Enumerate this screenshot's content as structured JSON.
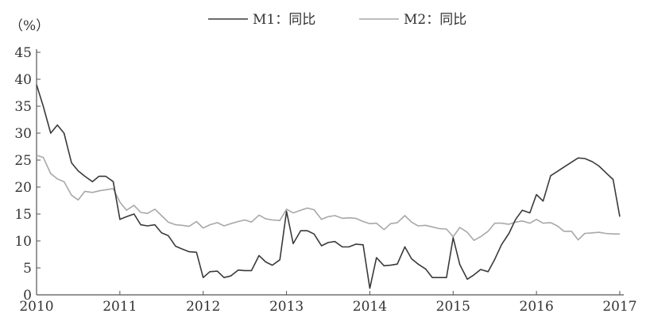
{
  "chart_data": {
    "type": "line",
    "ylabel": "（%）",
    "ylim": [
      0,
      45
    ],
    "yticks": [
      0,
      5,
      10,
      15,
      20,
      25,
      30,
      35,
      40,
      45
    ],
    "xlim": [
      2010,
      2017
    ],
    "xticks": [
      "2010",
      "2011",
      "2012",
      "2013",
      "2014",
      "2015",
      "2016",
      "2017"
    ],
    "grid": false,
    "legend_position": "top-center",
    "series": [
      {
        "name": "M1：同比",
        "color": "#3a3a3a",
        "points": [
          [
            2010.0,
            39.0
          ],
          [
            2010.08,
            35.0
          ],
          [
            2010.17,
            30.0
          ],
          [
            2010.25,
            31.5
          ],
          [
            2010.33,
            30.0
          ],
          [
            2010.42,
            24.5
          ],
          [
            2010.5,
            23.0
          ],
          [
            2010.58,
            22.0
          ],
          [
            2010.67,
            21.0
          ],
          [
            2010.75,
            22.0
          ],
          [
            2010.83,
            22.0
          ],
          [
            2010.92,
            21.0
          ],
          [
            2011.0,
            14.0
          ],
          [
            2011.08,
            14.5
          ],
          [
            2011.17,
            15.0
          ],
          [
            2011.25,
            13.0
          ],
          [
            2011.33,
            12.8
          ],
          [
            2011.42,
            13.0
          ],
          [
            2011.5,
            11.5
          ],
          [
            2011.58,
            11.0
          ],
          [
            2011.67,
            9.0
          ],
          [
            2011.75,
            8.5
          ],
          [
            2011.83,
            8.0
          ],
          [
            2011.92,
            7.9
          ],
          [
            2012.0,
            3.2
          ],
          [
            2012.08,
            4.3
          ],
          [
            2012.17,
            4.4
          ],
          [
            2012.25,
            3.2
          ],
          [
            2012.33,
            3.5
          ],
          [
            2012.42,
            4.6
          ],
          [
            2012.5,
            4.5
          ],
          [
            2012.58,
            4.5
          ],
          [
            2012.67,
            7.3
          ],
          [
            2012.75,
            6.1
          ],
          [
            2012.83,
            5.5
          ],
          [
            2012.92,
            6.5
          ],
          [
            2013.0,
            15.5
          ],
          [
            2013.08,
            9.5
          ],
          [
            2013.17,
            11.9
          ],
          [
            2013.25,
            11.9
          ],
          [
            2013.33,
            11.3
          ],
          [
            2013.42,
            9.1
          ],
          [
            2013.5,
            9.7
          ],
          [
            2013.58,
            9.9
          ],
          [
            2013.67,
            8.9
          ],
          [
            2013.75,
            8.9
          ],
          [
            2013.83,
            9.4
          ],
          [
            2013.92,
            9.3
          ],
          [
            2014.0,
            1.2
          ],
          [
            2014.08,
            6.9
          ],
          [
            2014.17,
            5.4
          ],
          [
            2014.25,
            5.5
          ],
          [
            2014.33,
            5.7
          ],
          [
            2014.42,
            8.9
          ],
          [
            2014.5,
            6.7
          ],
          [
            2014.58,
            5.7
          ],
          [
            2014.67,
            4.8
          ],
          [
            2014.75,
            3.2
          ],
          [
            2014.83,
            3.2
          ],
          [
            2014.92,
            3.2
          ],
          [
            2015.0,
            10.6
          ],
          [
            2015.08,
            5.6
          ],
          [
            2015.17,
            2.9
          ],
          [
            2015.25,
            3.7
          ],
          [
            2015.33,
            4.7
          ],
          [
            2015.42,
            4.3
          ],
          [
            2015.5,
            6.6
          ],
          [
            2015.58,
            9.3
          ],
          [
            2015.67,
            11.4
          ],
          [
            2015.75,
            14.0
          ],
          [
            2015.83,
            15.7
          ],
          [
            2015.92,
            15.2
          ],
          [
            2016.0,
            18.6
          ],
          [
            2016.08,
            17.4
          ],
          [
            2016.17,
            22.1
          ],
          [
            2016.25,
            22.9
          ],
          [
            2016.33,
            23.7
          ],
          [
            2016.42,
            24.6
          ],
          [
            2016.5,
            25.4
          ],
          [
            2016.58,
            25.3
          ],
          [
            2016.67,
            24.7
          ],
          [
            2016.75,
            23.9
          ],
          [
            2016.83,
            22.7
          ],
          [
            2016.92,
            21.4
          ],
          [
            2017.0,
            14.5
          ]
        ]
      },
      {
        "name": "M2：同比",
        "color": "#a8a8a8",
        "points": [
          [
            2010.0,
            25.9
          ],
          [
            2010.08,
            25.5
          ],
          [
            2010.17,
            22.5
          ],
          [
            2010.25,
            21.5
          ],
          [
            2010.33,
            21.0
          ],
          [
            2010.42,
            18.5
          ],
          [
            2010.5,
            17.6
          ],
          [
            2010.58,
            19.2
          ],
          [
            2010.67,
            19.0
          ],
          [
            2010.75,
            19.3
          ],
          [
            2010.83,
            19.5
          ],
          [
            2010.92,
            19.7
          ],
          [
            2011.0,
            17.2
          ],
          [
            2011.08,
            15.7
          ],
          [
            2011.17,
            16.6
          ],
          [
            2011.25,
            15.3
          ],
          [
            2011.33,
            15.1
          ],
          [
            2011.42,
            15.9
          ],
          [
            2011.5,
            14.7
          ],
          [
            2011.58,
            13.5
          ],
          [
            2011.67,
            13.0
          ],
          [
            2011.75,
            12.9
          ],
          [
            2011.83,
            12.7
          ],
          [
            2011.92,
            13.6
          ],
          [
            2012.0,
            12.4
          ],
          [
            2012.08,
            13.0
          ],
          [
            2012.17,
            13.4
          ],
          [
            2012.25,
            12.8
          ],
          [
            2012.33,
            13.2
          ],
          [
            2012.42,
            13.6
          ],
          [
            2012.5,
            13.9
          ],
          [
            2012.58,
            13.5
          ],
          [
            2012.67,
            14.8
          ],
          [
            2012.75,
            14.1
          ],
          [
            2012.83,
            13.9
          ],
          [
            2012.92,
            13.8
          ],
          [
            2013.0,
            15.9
          ],
          [
            2013.08,
            15.2
          ],
          [
            2013.17,
            15.7
          ],
          [
            2013.25,
            16.1
          ],
          [
            2013.33,
            15.8
          ],
          [
            2013.42,
            14.0
          ],
          [
            2013.5,
            14.5
          ],
          [
            2013.58,
            14.7
          ],
          [
            2013.67,
            14.2
          ],
          [
            2013.75,
            14.3
          ],
          [
            2013.83,
            14.2
          ],
          [
            2013.92,
            13.6
          ],
          [
            2014.0,
            13.2
          ],
          [
            2014.08,
            13.3
          ],
          [
            2014.17,
            12.1
          ],
          [
            2014.25,
            13.2
          ],
          [
            2014.33,
            13.4
          ],
          [
            2014.42,
            14.7
          ],
          [
            2014.5,
            13.5
          ],
          [
            2014.58,
            12.8
          ],
          [
            2014.67,
            12.9
          ],
          [
            2014.75,
            12.6
          ],
          [
            2014.83,
            12.3
          ],
          [
            2014.92,
            12.2
          ],
          [
            2015.0,
            10.8
          ],
          [
            2015.08,
            12.5
          ],
          [
            2015.17,
            11.6
          ],
          [
            2015.25,
            10.1
          ],
          [
            2015.33,
            10.8
          ],
          [
            2015.42,
            11.8
          ],
          [
            2015.5,
            13.3
          ],
          [
            2015.58,
            13.3
          ],
          [
            2015.67,
            13.1
          ],
          [
            2015.75,
            13.5
          ],
          [
            2015.83,
            13.7
          ],
          [
            2015.92,
            13.3
          ],
          [
            2016.0,
            14.0
          ],
          [
            2016.08,
            13.3
          ],
          [
            2016.17,
            13.4
          ],
          [
            2016.25,
            12.8
          ],
          [
            2016.33,
            11.8
          ],
          [
            2016.42,
            11.8
          ],
          [
            2016.5,
            10.2
          ],
          [
            2016.58,
            11.4
          ],
          [
            2016.67,
            11.5
          ],
          [
            2016.75,
            11.6
          ],
          [
            2016.83,
            11.4
          ],
          [
            2016.92,
            11.3
          ],
          [
            2017.0,
            11.3
          ]
        ]
      }
    ]
  }
}
